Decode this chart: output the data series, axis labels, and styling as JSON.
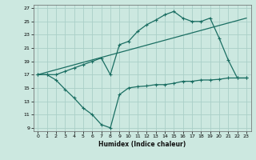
{
  "xlabel": "Humidex (Indice chaleur)",
  "bg_color": "#cce8e0",
  "grid_color": "#aacfc8",
  "line_color": "#1a6e62",
  "xlim": [
    -0.5,
    23.5
  ],
  "ylim": [
    8.5,
    27.5
  ],
  "xticks": [
    0,
    1,
    2,
    3,
    4,
    5,
    6,
    7,
    8,
    9,
    10,
    11,
    12,
    13,
    14,
    15,
    16,
    17,
    18,
    19,
    20,
    21,
    22,
    23
  ],
  "yticks": [
    9,
    11,
    13,
    15,
    17,
    19,
    21,
    23,
    25,
    27
  ],
  "line1_x": [
    0,
    1,
    2,
    3,
    4,
    5,
    6,
    7,
    8,
    9,
    10,
    11,
    12,
    13,
    14,
    15,
    16,
    17,
    18,
    19,
    20,
    21,
    22,
    23
  ],
  "line1_y": [
    17,
    17,
    16.2,
    14.8,
    13.5,
    12.0,
    11.0,
    9.5,
    9.0,
    14.0,
    15.0,
    15.2,
    15.3,
    15.5,
    15.5,
    15.7,
    16.0,
    16.0,
    16.2,
    16.2,
    16.3,
    16.5,
    16.5,
    16.5
  ],
  "line2_x": [
    0,
    1,
    2,
    3,
    4,
    5,
    6,
    7,
    8,
    9,
    10,
    11,
    12,
    13,
    14,
    15,
    16,
    17,
    18,
    19,
    20,
    21,
    22,
    23
  ],
  "line2_y": [
    17,
    17,
    17,
    17.5,
    18.0,
    18.5,
    19.0,
    19.5,
    17.0,
    21.5,
    22.0,
    23.5,
    24.5,
    25.2,
    26.0,
    26.5,
    25.5,
    25.0,
    25.0,
    25.5,
    22.5,
    19.2,
    16.5,
    16.5
  ],
  "line3_x": [
    0,
    23
  ],
  "line3_y": [
    17,
    25.5
  ]
}
